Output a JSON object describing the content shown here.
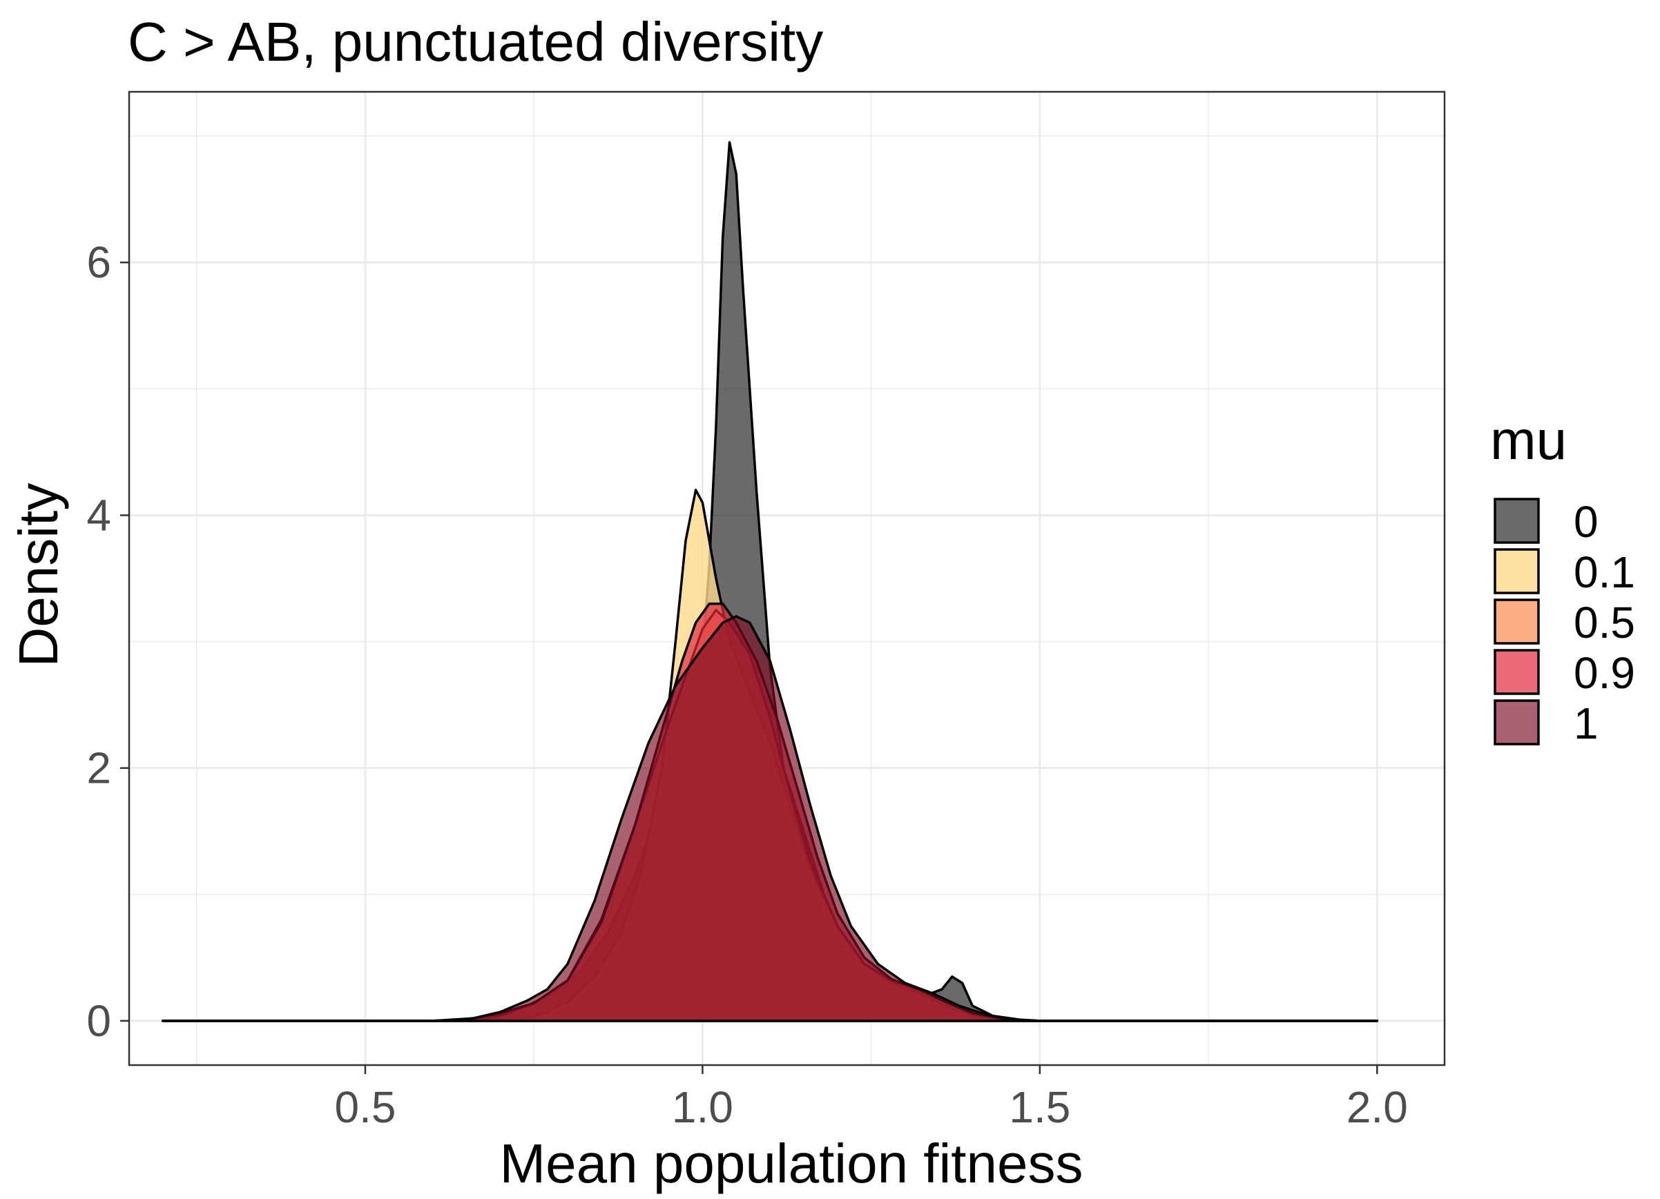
{
  "chart_data": {
    "type": "area",
    "title": "C > AB, punctuated diversity",
    "xlabel": "Mean population fitness",
    "ylabel": "Density",
    "xlim": [
      0.15,
      2.1
    ],
    "ylim": [
      -0.35,
      7.35
    ],
    "x_ticks": [
      0.5,
      1.0,
      1.5,
      2.0
    ],
    "x_tick_labels": [
      "0.5",
      "1.0",
      "1.5",
      "2.0"
    ],
    "y_ticks": [
      0,
      2,
      4,
      6
    ],
    "y_tick_labels": [
      "0",
      "2",
      "4",
      "6"
    ],
    "grid": true,
    "legend": {
      "title": "mu",
      "position": "right"
    },
    "series": [
      {
        "name": "0",
        "color": "#1a1a1a",
        "opacity": 0.65,
        "points": [
          [
            0.2,
            0
          ],
          [
            0.6,
            0
          ],
          [
            0.66,
            0.02
          ],
          [
            0.7,
            0.06
          ],
          [
            0.74,
            0.12
          ],
          [
            0.78,
            0.22
          ],
          [
            0.82,
            0.4
          ],
          [
            0.86,
            0.7
          ],
          [
            0.9,
            1.15
          ],
          [
            0.93,
            1.6
          ],
          [
            0.96,
            2.1
          ],
          [
            0.98,
            2.45
          ],
          [
            1.0,
            2.9
          ],
          [
            1.01,
            3.6
          ],
          [
            1.02,
            4.7
          ],
          [
            1.03,
            6.2
          ],
          [
            1.04,
            6.95
          ],
          [
            1.05,
            6.7
          ],
          [
            1.06,
            5.8
          ],
          [
            1.08,
            4.2
          ],
          [
            1.1,
            2.8
          ],
          [
            1.12,
            2.0
          ],
          [
            1.15,
            1.5
          ],
          [
            1.18,
            1.0
          ],
          [
            1.21,
            0.6
          ],
          [
            1.25,
            0.4
          ],
          [
            1.29,
            0.3
          ],
          [
            1.33,
            0.2
          ],
          [
            1.355,
            0.25
          ],
          [
            1.37,
            0.35
          ],
          [
            1.385,
            0.3
          ],
          [
            1.4,
            0.12
          ],
          [
            1.43,
            0.04
          ],
          [
            1.47,
            0.01
          ],
          [
            1.5,
            0
          ],
          [
            2.0,
            0
          ]
        ]
      },
      {
        "name": "0.1",
        "color": "#fdd989",
        "opacity": 0.8,
        "points": [
          [
            0.2,
            0
          ],
          [
            0.72,
            0
          ],
          [
            0.76,
            0.05
          ],
          [
            0.8,
            0.15
          ],
          [
            0.84,
            0.35
          ],
          [
            0.88,
            0.7
          ],
          [
            0.91,
            1.2
          ],
          [
            0.94,
            2.0
          ],
          [
            0.96,
            3.0
          ],
          [
            0.975,
            3.8
          ],
          [
            0.99,
            4.2
          ],
          [
            1.0,
            4.1
          ],
          [
            1.02,
            3.5
          ],
          [
            1.04,
            3.0
          ],
          [
            1.07,
            2.6
          ],
          [
            1.1,
            2.2
          ],
          [
            1.13,
            1.7
          ],
          [
            1.16,
            1.2
          ],
          [
            1.2,
            0.75
          ],
          [
            1.24,
            0.45
          ],
          [
            1.28,
            0.3
          ],
          [
            1.32,
            0.22
          ],
          [
            1.36,
            0.12
          ],
          [
            1.4,
            0.04
          ],
          [
            1.44,
            0.01
          ],
          [
            1.47,
            0
          ],
          [
            2.0,
            0
          ]
        ]
      },
      {
        "name": "0.5",
        "color": "#f9915a",
        "opacity": 0.75,
        "points": [
          [
            0.2,
            0
          ],
          [
            0.65,
            0
          ],
          [
            0.7,
            0.04
          ],
          [
            0.75,
            0.14
          ],
          [
            0.8,
            0.32
          ],
          [
            0.85,
            0.8
          ],
          [
            0.9,
            1.55
          ],
          [
            0.95,
            2.35
          ],
          [
            0.98,
            2.8
          ],
          [
            1.0,
            3.1
          ],
          [
            1.02,
            3.25
          ],
          [
            1.04,
            3.15
          ],
          [
            1.07,
            2.9
          ],
          [
            1.1,
            2.4
          ],
          [
            1.13,
            1.8
          ],
          [
            1.16,
            1.25
          ],
          [
            1.2,
            0.75
          ],
          [
            1.24,
            0.45
          ],
          [
            1.28,
            0.32
          ],
          [
            1.32,
            0.25
          ],
          [
            1.36,
            0.15
          ],
          [
            1.4,
            0.06
          ],
          [
            1.44,
            0.02
          ],
          [
            1.48,
            0
          ],
          [
            2.0,
            0
          ]
        ]
      },
      {
        "name": "0.9",
        "color": "#e12b3f",
        "opacity": 0.7,
        "points": [
          [
            0.2,
            0
          ],
          [
            0.62,
            0
          ],
          [
            0.66,
            0.02
          ],
          [
            0.7,
            0.06
          ],
          [
            0.75,
            0.14
          ],
          [
            0.8,
            0.32
          ],
          [
            0.85,
            0.78
          ],
          [
            0.9,
            1.55
          ],
          [
            0.94,
            2.3
          ],
          [
            0.97,
            2.85
          ],
          [
            0.99,
            3.15
          ],
          [
            1.01,
            3.3
          ],
          [
            1.03,
            3.3
          ],
          [
            1.05,
            3.15
          ],
          [
            1.08,
            2.85
          ],
          [
            1.11,
            2.4
          ],
          [
            1.14,
            1.85
          ],
          [
            1.17,
            1.3
          ],
          [
            1.2,
            0.85
          ],
          [
            1.24,
            0.5
          ],
          [
            1.28,
            0.33
          ],
          [
            1.32,
            0.25
          ],
          [
            1.36,
            0.15
          ],
          [
            1.4,
            0.06
          ],
          [
            1.44,
            0.02
          ],
          [
            1.48,
            0
          ],
          [
            2.0,
            0
          ]
        ]
      },
      {
        "name": "1",
        "color": "#7d0e24",
        "opacity": 0.65,
        "points": [
          [
            0.2,
            0
          ],
          [
            0.62,
            0
          ],
          [
            0.66,
            0.02
          ],
          [
            0.7,
            0.07
          ],
          [
            0.74,
            0.16
          ],
          [
            0.77,
            0.25
          ],
          [
            0.8,
            0.45
          ],
          [
            0.84,
            0.95
          ],
          [
            0.88,
            1.6
          ],
          [
            0.92,
            2.2
          ],
          [
            0.96,
            2.65
          ],
          [
            1.0,
            2.95
          ],
          [
            1.03,
            3.15
          ],
          [
            1.05,
            3.2
          ],
          [
            1.07,
            3.15
          ],
          [
            1.1,
            2.85
          ],
          [
            1.13,
            2.3
          ],
          [
            1.16,
            1.7
          ],
          [
            1.19,
            1.15
          ],
          [
            1.22,
            0.75
          ],
          [
            1.26,
            0.45
          ],
          [
            1.3,
            0.3
          ],
          [
            1.34,
            0.22
          ],
          [
            1.38,
            0.12
          ],
          [
            1.42,
            0.05
          ],
          [
            1.46,
            0.01
          ],
          [
            1.5,
            0
          ],
          [
            2.0,
            0
          ]
        ]
      }
    ]
  }
}
